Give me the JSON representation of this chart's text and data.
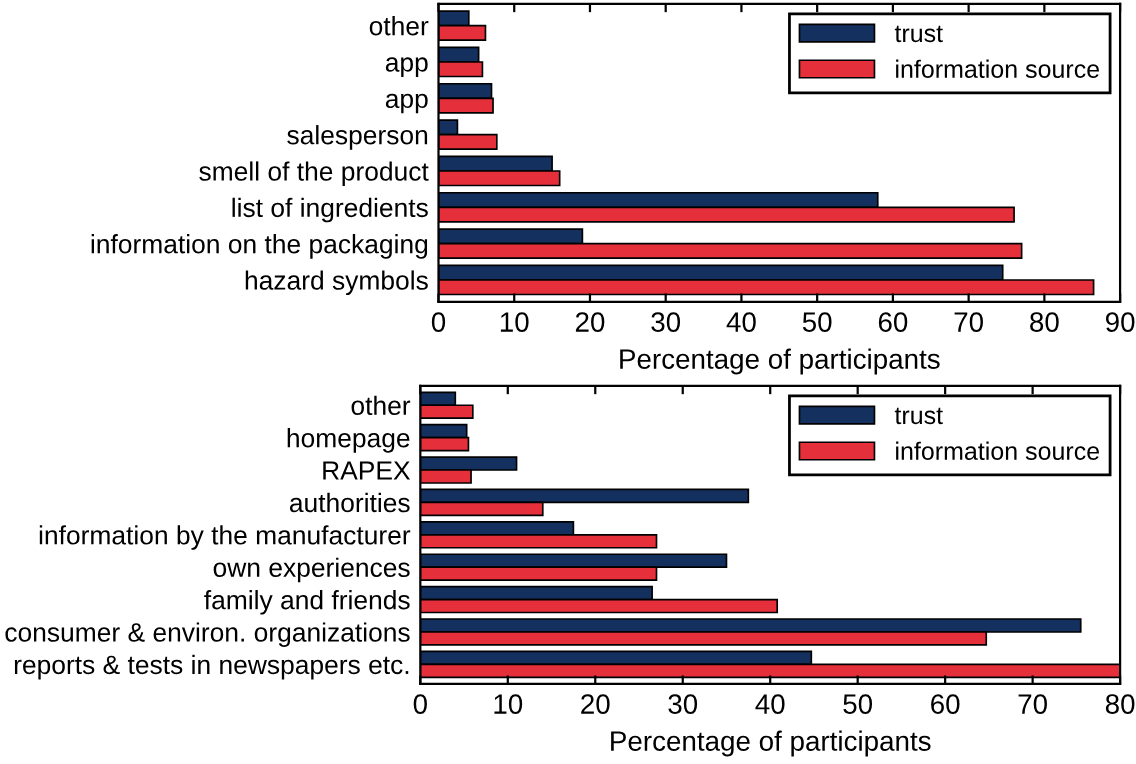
{
  "chart_data": [
    {
      "type": "bar",
      "orientation": "horizontal",
      "xlabel": "Percentage of participants",
      "categories": [
        "other",
        "app",
        "app",
        "salesperson",
        "smell of the product",
        "list of ingredients",
        "information on the packaging",
        "hazard symbols"
      ],
      "series": [
        {
          "name": "trust",
          "color": "#13305e",
          "values": [
            4,
            5.3,
            7,
            2.5,
            15,
            58,
            19,
            74.5
          ]
        },
        {
          "name": "information source",
          "color": "#e5303c",
          "values": [
            6.2,
            5.8,
            7.2,
            7.7,
            16,
            76,
            77,
            86.5
          ]
        }
      ],
      "xlim": [
        0,
        90
      ],
      "xticks": [
        0,
        10,
        20,
        30,
        40,
        50,
        60,
        70,
        80,
        90
      ],
      "legend": "top right",
      "grid": false
    },
    {
      "type": "bar",
      "orientation": "horizontal",
      "xlabel": "Percentage of participants",
      "categories": [
        "other",
        "homepage",
        "RAPEX",
        "authorities",
        "information by the manufacturer",
        "own experiences",
        "family and friends",
        "consumer & environ. organizations",
        "reports & tests in newspapers etc."
      ],
      "series": [
        {
          "name": "trust",
          "color": "#13305e",
          "values": [
            4,
            5.3,
            11,
            37.5,
            17.5,
            35,
            26.5,
            75.5,
            44.7
          ]
        },
        {
          "name": "information source",
          "color": "#e5303c",
          "values": [
            6,
            5.5,
            5.8,
            14,
            27,
            27,
            40.8,
            64.7,
            80
          ]
        }
      ],
      "xlim": [
        0,
        80
      ],
      "xticks": [
        0,
        10,
        20,
        30,
        40,
        50,
        60,
        70,
        80
      ],
      "legend": "top right",
      "grid": false
    }
  ]
}
